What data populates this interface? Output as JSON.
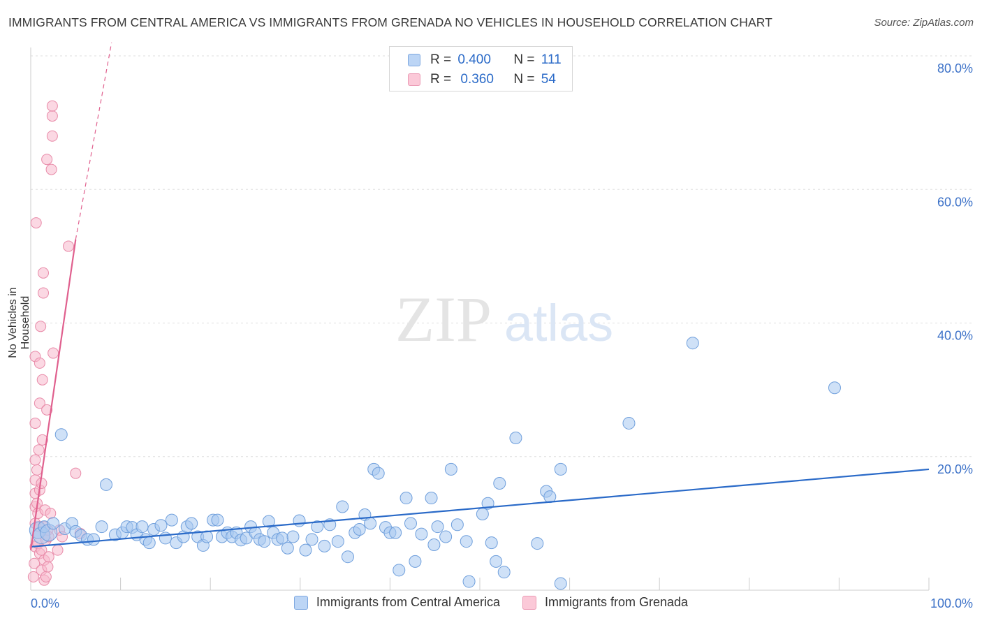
{
  "title": "IMMIGRANTS FROM CENTRAL AMERICA VS IMMIGRANTS FROM GRENADA NO VEHICLES IN HOUSEHOLD CORRELATION CHART",
  "source": "Source: ZipAtlas.com",
  "watermark": {
    "zip": "ZIP",
    "atlas": "atlas"
  },
  "legend": {
    "series1": {
      "r_label": "R =",
      "r_value": "0.400",
      "n_label": "N =",
      "n_value": "111"
    },
    "series2": {
      "r_label": "R =",
      "r_value": "0.360",
      "n_label": "N =",
      "n_value": "54"
    }
  },
  "colors": {
    "blue_fill": "#a8c8f0",
    "blue_stroke": "#6f9fdc",
    "blue_line": "#2a6ac8",
    "pink_fill": "#f8b8cc",
    "pink_stroke": "#e88aa8",
    "pink_line": "#e0608e",
    "axis_text": "#3d72c8",
    "grid": "#dddddd"
  },
  "chart_data": {
    "type": "scatter",
    "title": "IMMIGRANTS FROM CENTRAL AMERICA VS IMMIGRANTS FROM GRENADA NO VEHICLES IN HOUSEHOLD CORRELATION CHART",
    "xlabel": "",
    "ylabel": "No Vehicles in Household",
    "xlim": [
      0,
      100
    ],
    "ylim": [
      0,
      80
    ],
    "x_tick_labels": [
      "0.0%",
      "100.0%"
    ],
    "y_ticks": [
      20,
      40,
      60,
      80
    ],
    "y_tick_labels": [
      "20.0%",
      "40.0%",
      "60.0%",
      "80.0%"
    ],
    "grid": true,
    "legend_position": "top-center",
    "series": [
      {
        "name": "Immigrants from Central America",
        "r": 0.4,
        "n": 111,
        "trend": {
          "x1": 0,
          "y1": 6.5,
          "x2": 100,
          "y2": 18.1
        },
        "points": [
          [
            0.8,
            9.0,
            "L"
          ],
          [
            1.2,
            8.2,
            "L"
          ],
          [
            1.5,
            9.5,
            "M"
          ],
          [
            2.0,
            8.6,
            "L"
          ],
          [
            2.5,
            10.0,
            "M"
          ],
          [
            3.4,
            23.3,
            "M"
          ],
          [
            3.8,
            9.2,
            "M"
          ],
          [
            4.6,
            10.0,
            "M"
          ],
          [
            5.0,
            8.8,
            "M"
          ],
          [
            5.6,
            8.2,
            "M"
          ],
          [
            6.3,
            7.6,
            "M"
          ],
          [
            7.0,
            7.6,
            "M"
          ],
          [
            7.9,
            9.5,
            "M"
          ],
          [
            8.4,
            15.8,
            "M"
          ],
          [
            9.4,
            8.3,
            "M"
          ],
          [
            10.2,
            8.6,
            "M"
          ],
          [
            10.7,
            9.5,
            "M"
          ],
          [
            11.3,
            9.4,
            "M"
          ],
          [
            11.8,
            8.3,
            "M"
          ],
          [
            12.4,
            9.5,
            "M"
          ],
          [
            12.8,
            7.6,
            "M"
          ],
          [
            13.2,
            7.1,
            "M"
          ],
          [
            13.7,
            9.1,
            "M"
          ],
          [
            14.5,
            9.7,
            "M"
          ],
          [
            15.0,
            7.8,
            "M"
          ],
          [
            15.7,
            10.5,
            "M"
          ],
          [
            16.2,
            7.1,
            "M"
          ],
          [
            17.0,
            8.0,
            "M"
          ],
          [
            17.4,
            9.5,
            "M"
          ],
          [
            17.9,
            10.0,
            "M"
          ],
          [
            18.6,
            8.0,
            "M"
          ],
          [
            19.2,
            6.7,
            "M"
          ],
          [
            19.6,
            8.0,
            "M"
          ],
          [
            20.3,
            10.5,
            "M"
          ],
          [
            20.8,
            10.5,
            "M"
          ],
          [
            21.3,
            8.0,
            "M"
          ],
          [
            21.9,
            8.6,
            "M"
          ],
          [
            22.4,
            8.0,
            "M"
          ],
          [
            22.9,
            8.6,
            "M"
          ],
          [
            23.4,
            7.5,
            "M"
          ],
          [
            24.0,
            7.8,
            "M"
          ],
          [
            24.5,
            9.5,
            "M"
          ],
          [
            25.0,
            8.6,
            "M"
          ],
          [
            25.5,
            7.6,
            "M"
          ],
          [
            26.0,
            7.3,
            "M"
          ],
          [
            26.5,
            10.3,
            "M"
          ],
          [
            27.0,
            8.6,
            "M"
          ],
          [
            27.5,
            7.6,
            "M"
          ],
          [
            28.0,
            7.8,
            "M"
          ],
          [
            28.6,
            6.3,
            "M"
          ],
          [
            29.2,
            8.0,
            "M"
          ],
          [
            29.9,
            10.4,
            "M"
          ],
          [
            30.6,
            6.0,
            "M"
          ],
          [
            31.3,
            7.6,
            "M"
          ],
          [
            31.9,
            9.5,
            "M"
          ],
          [
            32.7,
            6.6,
            "M"
          ],
          [
            33.3,
            9.8,
            "M"
          ],
          [
            34.2,
            7.3,
            "M"
          ],
          [
            34.7,
            12.5,
            "M"
          ],
          [
            35.3,
            5.0,
            "M"
          ],
          [
            36.1,
            8.6,
            "M"
          ],
          [
            36.6,
            9.1,
            "M"
          ],
          [
            37.2,
            11.3,
            "M"
          ],
          [
            37.8,
            10.0,
            "M"
          ],
          [
            38.2,
            18.1,
            "M"
          ],
          [
            38.7,
            17.5,
            "M"
          ],
          [
            39.5,
            9.4,
            "M"
          ],
          [
            40.0,
            8.6,
            "M"
          ],
          [
            40.6,
            8.6,
            "M"
          ],
          [
            41.0,
            3.0,
            "M"
          ],
          [
            41.8,
            13.8,
            "M"
          ],
          [
            42.3,
            10.0,
            "M"
          ],
          [
            42.8,
            4.3,
            "M"
          ],
          [
            43.5,
            8.4,
            "M"
          ],
          [
            44.6,
            13.8,
            "M"
          ],
          [
            44.9,
            6.8,
            "M"
          ],
          [
            45.3,
            9.5,
            "M"
          ],
          [
            46.2,
            8.0,
            "M"
          ],
          [
            46.8,
            18.1,
            "M"
          ],
          [
            47.5,
            9.8,
            "M"
          ],
          [
            48.5,
            7.3,
            "M"
          ],
          [
            48.8,
            1.3,
            "M"
          ],
          [
            50.3,
            11.4,
            "M"
          ],
          [
            50.9,
            13.0,
            "M"
          ],
          [
            51.3,
            7.1,
            "M"
          ],
          [
            51.8,
            4.3,
            "M"
          ],
          [
            52.2,
            16.0,
            "M"
          ],
          [
            52.7,
            2.7,
            "M"
          ],
          [
            54.0,
            22.8,
            "M"
          ],
          [
            56.4,
            7.0,
            "M"
          ],
          [
            57.4,
            14.8,
            "M"
          ],
          [
            57.8,
            14.0,
            "M"
          ],
          [
            59.0,
            18.1,
            "M"
          ],
          [
            66.6,
            25.0,
            "M"
          ],
          [
            73.7,
            37.0,
            "M"
          ],
          [
            89.5,
            30.3,
            "M"
          ],
          [
            59.0,
            1.0,
            "M"
          ]
        ]
      },
      {
        "name": "Immigrants from Grenada",
        "r": 0.36,
        "n": 54,
        "trend": {
          "x1": 0,
          "y1": 6.0,
          "x2": 5.0,
          "y2": 52.5,
          "dash_x1": 5.0,
          "dash_y1": 52.5,
          "dash_x2": 9.0,
          "dash_y2": 82.0
        },
        "points": [
          [
            0.3,
            2.0
          ],
          [
            0.4,
            4.0
          ],
          [
            0.5,
            6.5
          ],
          [
            0.5,
            10.0
          ],
          [
            0.5,
            12.5
          ],
          [
            0.5,
            14.5
          ],
          [
            0.5,
            16.5
          ],
          [
            0.5,
            19.5
          ],
          [
            0.5,
            25.0
          ],
          [
            0.5,
            35.0
          ],
          [
            0.6,
            55.0
          ],
          [
            0.7,
            13.0
          ],
          [
            0.7,
            18.0
          ],
          [
            0.8,
            7.0
          ],
          [
            0.8,
            8.5
          ],
          [
            0.8,
            11.5
          ],
          [
            0.9,
            21.0
          ],
          [
            1.0,
            5.5
          ],
          [
            1.0,
            9.5
          ],
          [
            1.0,
            15.0
          ],
          [
            1.0,
            28.0
          ],
          [
            1.0,
            34.0
          ],
          [
            1.1,
            39.5
          ],
          [
            1.2,
            3.0
          ],
          [
            1.2,
            6.0
          ],
          [
            1.2,
            16.0
          ],
          [
            1.3,
            22.5
          ],
          [
            1.3,
            31.5
          ],
          [
            1.4,
            47.5
          ],
          [
            1.4,
            44.5
          ],
          [
            1.5,
            1.5
          ],
          [
            1.5,
            4.5
          ],
          [
            1.5,
            9.5
          ],
          [
            1.6,
            12.0
          ],
          [
            1.7,
            2.0
          ],
          [
            1.7,
            7.5
          ],
          [
            1.8,
            27.0
          ],
          [
            1.8,
            64.5
          ],
          [
            1.9,
            3.5
          ],
          [
            1.9,
            9.0
          ],
          [
            2.0,
            5.0
          ],
          [
            2.0,
            8.0
          ],
          [
            2.2,
            11.5
          ],
          [
            2.3,
            63.0
          ],
          [
            2.4,
            71.0
          ],
          [
            2.4,
            68.0
          ],
          [
            2.4,
            72.5
          ],
          [
            2.5,
            35.5
          ],
          [
            3.0,
            6.0
          ],
          [
            3.2,
            9.0
          ],
          [
            3.5,
            8.0
          ],
          [
            4.2,
            51.5
          ],
          [
            5.0,
            17.5
          ],
          [
            5.5,
            8.5
          ]
        ]
      }
    ]
  }
}
